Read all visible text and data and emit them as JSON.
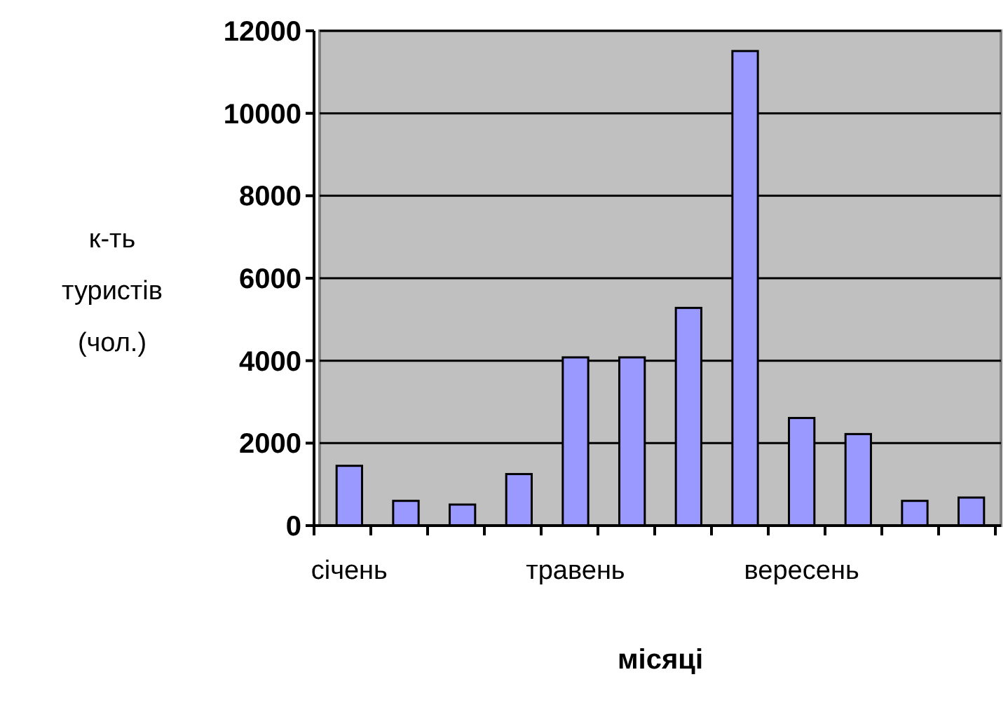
{
  "chart_data": {
    "type": "bar",
    "xlabel": "місяці",
    "ylabel": "к-ть туристів (чол.)",
    "categories": [
      "січень",
      null,
      null,
      null,
      "травень",
      null,
      null,
      null,
      "вересень",
      null,
      null,
      null
    ],
    "values": [
      1450,
      600,
      510,
      1250,
      4080,
      4080,
      5280,
      11510,
      2610,
      2220,
      600,
      680
    ],
    "color": "#9999ff",
    "ylim": [
      0,
      12000
    ],
    "yticks": [
      0,
      2000,
      4000,
      6000,
      8000,
      10000,
      12000
    ],
    "grid": "y"
  }
}
